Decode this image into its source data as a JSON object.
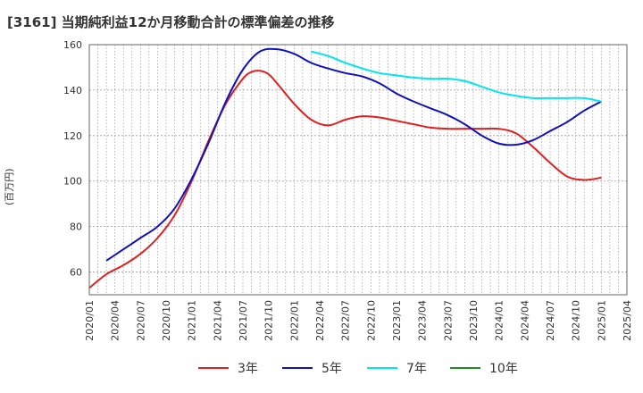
{
  "title": "[3161]  当期純利益12か月移動合計の標準偏差の推移",
  "ylabel": "(百万円)",
  "chart_data": {
    "type": "line",
    "title": "[3161]  当期純利益12か月移動合計の標準偏差の推移",
    "xlabel": "",
    "ylabel": "(百万円)",
    "ylim": [
      50,
      160
    ],
    "yticks": [
      60,
      80,
      100,
      120,
      140,
      160
    ],
    "xlim": [
      "2020-01",
      "2025-04"
    ],
    "xticks": [
      "2020/01",
      "2020/04",
      "2020/07",
      "2020/10",
      "2021/01",
      "2021/04",
      "2021/07",
      "2021/10",
      "2022/01",
      "2022/04",
      "2022/07",
      "2022/10",
      "2023/01",
      "2023/04",
      "2023/07",
      "2023/10",
      "2024/01",
      "2024/04",
      "2024/07",
      "2024/10",
      "2025/01",
      "2025/04"
    ],
    "grid": true,
    "legend_position": "bottom",
    "series": [
      {
        "name": "3年",
        "color": "#e02020",
        "points": [
          [
            "2020-01",
            53
          ],
          [
            "2020-03",
            59
          ],
          [
            "2020-05",
            63
          ],
          [
            "2020-07",
            68
          ],
          [
            "2020-09",
            75
          ],
          [
            "2020-11",
            85
          ],
          [
            "2021-01",
            100
          ],
          [
            "2021-03",
            118
          ],
          [
            "2021-05",
            134
          ],
          [
            "2021-07",
            145
          ],
          [
            "2021-08",
            148
          ],
          [
            "2021-09",
            148.5
          ],
          [
            "2021-10",
            147
          ],
          [
            "2021-11",
            143
          ],
          [
            "2022-01",
            134
          ],
          [
            "2022-03",
            127
          ],
          [
            "2022-05",
            124.5
          ],
          [
            "2022-07",
            127
          ],
          [
            "2022-09",
            128.5
          ],
          [
            "2022-11",
            128
          ],
          [
            "2023-01",
            126.5
          ],
          [
            "2023-03",
            125
          ],
          [
            "2023-05",
            123.5
          ],
          [
            "2023-07",
            123
          ],
          [
            "2023-09",
            123
          ],
          [
            "2023-11",
            123
          ],
          [
            "2024-01",
            123
          ],
          [
            "2024-03",
            121
          ],
          [
            "2024-05",
            115
          ],
          [
            "2024-07",
            108
          ],
          [
            "2024-09",
            102
          ],
          [
            "2024-11",
            100.5
          ],
          [
            "2025-01",
            101.5
          ]
        ]
      },
      {
        "name": "5年",
        "color": "#1111bb",
        "points": [
          [
            "2020-03",
            65
          ],
          [
            "2020-05",
            70
          ],
          [
            "2020-07",
            75
          ],
          [
            "2020-09",
            80
          ],
          [
            "2020-11",
            88
          ],
          [
            "2021-01",
            101
          ],
          [
            "2021-03",
            117
          ],
          [
            "2021-05",
            135
          ],
          [
            "2021-07",
            149
          ],
          [
            "2021-09",
            157
          ],
          [
            "2021-11",
            158
          ],
          [
            "2022-01",
            156
          ],
          [
            "2022-03",
            152
          ],
          [
            "2022-05",
            149.5
          ],
          [
            "2022-07",
            147.5
          ],
          [
            "2022-09",
            146
          ],
          [
            "2022-11",
            143
          ],
          [
            "2023-01",
            138.5
          ],
          [
            "2023-03",
            135
          ],
          [
            "2023-05",
            132
          ],
          [
            "2023-07",
            129
          ],
          [
            "2023-09",
            125
          ],
          [
            "2023-11",
            120
          ],
          [
            "2024-01",
            116.5
          ],
          [
            "2024-03",
            116
          ],
          [
            "2024-05",
            118
          ],
          [
            "2024-07",
            122
          ],
          [
            "2024-09",
            126
          ],
          [
            "2024-11",
            131
          ],
          [
            "2025-01",
            135
          ]
        ]
      },
      {
        "name": "7年",
        "color": "#00e5ee",
        "points": [
          [
            "2022-03",
            157
          ],
          [
            "2022-05",
            155
          ],
          [
            "2022-07",
            152
          ],
          [
            "2022-09",
            149.5
          ],
          [
            "2022-11",
            147.5
          ],
          [
            "2023-01",
            146.5
          ],
          [
            "2023-03",
            145.5
          ],
          [
            "2023-05",
            145
          ],
          [
            "2023-07",
            145
          ],
          [
            "2023-09",
            144
          ],
          [
            "2023-11",
            141.5
          ],
          [
            "2024-01",
            139
          ],
          [
            "2024-03",
            137.5
          ],
          [
            "2024-05",
            136.5
          ],
          [
            "2024-07",
            136.5
          ],
          [
            "2024-09",
            136.5
          ],
          [
            "2024-11",
            136.5
          ],
          [
            "2025-01",
            135
          ]
        ]
      },
      {
        "name": "10年",
        "color": "#228b22",
        "points": []
      }
    ]
  }
}
